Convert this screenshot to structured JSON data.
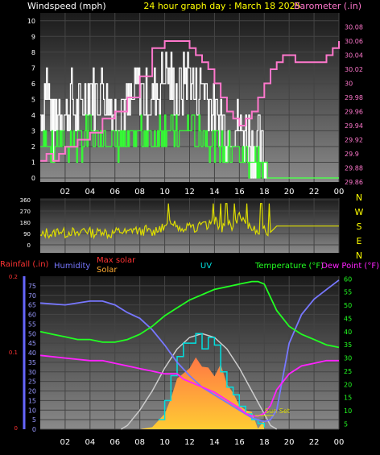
{
  "header": {
    "windspeed_label": "Windspeed (mph)",
    "title": "24 hour graph day : March 18 2025",
    "barometer_label": "Barometer (.in)"
  },
  "direction_labels": [
    "N",
    "W",
    "S",
    "E",
    "N"
  ],
  "lower_labels": {
    "rainfall": "Rainfall (.in)",
    "humidity": "Humidity",
    "max_solar": "Max solar",
    "solar": "Solar",
    "uv": "UV",
    "temperature": "Temperature (°F)",
    "dew_point": "Dew Point (°F)",
    "sunset": "Sun Set"
  },
  "colors": {
    "windspeed": "#ffffff",
    "gust": "#ffffff",
    "wind_avg": "#33ff33",
    "barometer": "#ff77cc",
    "direction": "#dddd00",
    "rainfall": "#ff3333",
    "humidity": "#7777ff",
    "max_solar": "#cccccc",
    "solar": "#ffaa33",
    "uv": "#00e0e0",
    "temperature": "#22ff22",
    "dew_point": "#ff22ff",
    "sunset": "#dddd00"
  },
  "chart_data": [
    {
      "type": "line",
      "x_ticks": [
        "02",
        "04",
        "06",
        "08",
        "10",
        "12",
        "14",
        "16",
        "18",
        "20",
        "22",
        "00"
      ],
      "y_left_ticks": [
        "0",
        "1",
        "2",
        "3",
        "4",
        "5",
        "6",
        "7",
        "8",
        "9",
        "10"
      ],
      "y_right_ticks": [
        "29.86",
        "29.88",
        "29.9",
        "29.92",
        "29.94",
        "29.96",
        "29.98",
        "30",
        "30.02",
        "30.04",
        "30.06",
        "30.08"
      ],
      "ylim_left": [
        0,
        10.5
      ],
      "ylim_right": [
        29.86,
        30.1
      ],
      "xlim_hours": [
        0,
        24
      ],
      "series": [
        {
          "name": "Windspeed (mph)",
          "axis": "left",
          "x": [
            0,
            0.5,
            1,
            1.5,
            2,
            2.5,
            3,
            3.5,
            4,
            4.5,
            5,
            5.5,
            6,
            6.5,
            7,
            7.5,
            8,
            8.5,
            9,
            9.5,
            10,
            10.5,
            11,
            11.5,
            12,
            12.5,
            13,
            13.5,
            14,
            14.5,
            15,
            15.5,
            16,
            16.5,
            17,
            17.5,
            18,
            18.5,
            19,
            20,
            22,
            24
          ],
          "values": [
            4,
            6,
            3,
            5,
            4,
            5,
            4,
            5,
            6,
            5,
            6,
            5,
            4,
            5,
            4,
            5,
            6,
            5,
            5,
            6,
            7,
            6,
            5,
            6,
            7,
            5,
            6,
            5,
            4,
            4,
            3,
            4,
            3,
            3,
            2,
            2,
            1,
            0,
            0,
            0,
            0,
            0
          ]
        },
        {
          "name": "Barometer (.in)",
          "axis": "right",
          "x": [
            0,
            0.5,
            1,
            1.5,
            2,
            3,
            4,
            5,
            6,
            7,
            8,
            9,
            10,
            11,
            12,
            12.5,
            13,
            13.5,
            14,
            14.5,
            15,
            15.5,
            16,
            16.5,
            17,
            17.5,
            18,
            18.5,
            19,
            19.5,
            20,
            20.5,
            21,
            22,
            23,
            23.5,
            24
          ],
          "values": [
            29.89,
            29.9,
            29.89,
            29.9,
            29.91,
            29.92,
            29.93,
            29.95,
            29.96,
            29.98,
            30.01,
            30.05,
            30.06,
            30.06,
            30.05,
            30.04,
            30.03,
            30.02,
            30.0,
            29.98,
            29.96,
            29.95,
            29.94,
            29.95,
            29.96,
            29.98,
            30.0,
            30.02,
            30.03,
            30.04,
            30.04,
            30.03,
            30.03,
            30.03,
            30.04,
            30.05,
            30.06
          ]
        }
      ]
    },
    {
      "type": "line",
      "x_ticks": [
        "02",
        "04",
        "06",
        "08",
        "10",
        "12",
        "14",
        "16",
        "18",
        "20",
        "22",
        "00"
      ],
      "y_ticks": [
        "0",
        "90",
        "180",
        "270",
        "360"
      ],
      "ylim": [
        0,
        360
      ],
      "xlim_hours": [
        0,
        24
      ],
      "series": [
        {
          "name": "Wind direction",
          "x": [
            0,
            0.5,
            1,
            1.5,
            2,
            2.5,
            3,
            3.5,
            4,
            4.5,
            5,
            5.5,
            6,
            6.5,
            7,
            7.5,
            8,
            8.5,
            9,
            9.5,
            10,
            10.5,
            11,
            11.5,
            12,
            12.5,
            13,
            13.5,
            14,
            14.5,
            15,
            15.5,
            16,
            16.5,
            17,
            17.5,
            18,
            18.5,
            19,
            20,
            22,
            24
          ],
          "values": [
            60,
            100,
            80,
            120,
            90,
            110,
            70,
            130,
            100,
            90,
            120,
            80,
            100,
            110,
            90,
            130,
            100,
            120,
            90,
            140,
            120,
            200,
            150,
            130,
            180,
            120,
            160,
            140,
            200,
            130,
            170,
            150,
            220,
            160,
            140,
            120,
            110,
            100,
            150,
            150,
            150,
            150
          ]
        }
      ]
    },
    {
      "type": "line",
      "x_ticks": [
        "02",
        "04",
        "06",
        "08",
        "10",
        "12",
        "14",
        "16",
        "18",
        "20",
        "22",
        "00"
      ],
      "y_humidity_ticks": [
        "0",
        "5",
        "10",
        "15",
        "20",
        "25",
        "30",
        "35",
        "40",
        "45",
        "50",
        "55",
        "60",
        "65",
        "70",
        "75"
      ],
      "y_rain_ticks": [
        "0",
        "0.1",
        "0.2"
      ],
      "y_temp_ticks": [
        "5",
        "10",
        "15",
        "20",
        "25",
        "30",
        "35",
        "40",
        "45",
        "50",
        "55",
        "60"
      ],
      "ylim_humidity": [
        0,
        80
      ],
      "ylim_temp": [
        3,
        61
      ],
      "xlim_hours": [
        0,
        24
      ],
      "series": [
        {
          "name": "Humidity",
          "axis": "humidity",
          "x": [
            0,
            2,
            4,
            5,
            6,
            7,
            8,
            9,
            10,
            11,
            12,
            13,
            14,
            15,
            16,
            17,
            18,
            18.5,
            19,
            20,
            21,
            22,
            23,
            24
          ],
          "values": [
            66,
            65,
            67,
            67,
            65,
            61,
            58,
            52,
            44,
            35,
            28,
            22,
            18,
            14,
            10,
            6,
            4,
            5,
            10,
            45,
            60,
            68,
            73,
            78
          ]
        },
        {
          "name": "Max solar",
          "axis": "humidity",
          "x": [
            6.5,
            7,
            8,
            9,
            10,
            11,
            12,
            13,
            14,
            15,
            16,
            17,
            18,
            18.5,
            19
          ],
          "values": [
            0,
            2,
            10,
            20,
            32,
            42,
            48,
            50,
            48,
            42,
            32,
            20,
            8,
            2,
            0
          ]
        },
        {
          "name": "Solar",
          "axis": "humidity",
          "x": [
            8,
            9,
            10,
            10.5,
            11,
            11.5,
            12,
            12.5,
            13,
            13.5,
            14,
            14.5,
            15,
            15.5,
            16,
            16.5,
            17,
            17.5,
            18
          ],
          "values": [
            1,
            3,
            10,
            18,
            25,
            30,
            32,
            34,
            30,
            35,
            28,
            30,
            22,
            18,
            14,
            10,
            6,
            3,
            1
          ]
        },
        {
          "name": "UV",
          "axis": "humidity",
          "x": [
            9.5,
            10,
            10.5,
            11,
            11.5,
            12,
            12.5,
            13,
            13.5,
            14,
            14.5,
            15,
            15.5,
            16,
            16.5,
            17,
            17.5,
            18
          ],
          "values": [
            5,
            15,
            28,
            38,
            45,
            45,
            50,
            42,
            48,
            44,
            30,
            22,
            18,
            12,
            8,
            5,
            3,
            1
          ]
        },
        {
          "name": "Temperature (°F)",
          "axis": "temperature",
          "x": [
            0,
            1,
            2,
            3,
            4,
            5,
            6,
            7,
            8,
            9,
            10,
            11,
            12,
            13,
            14,
            15,
            16,
            17,
            17.5,
            18,
            19,
            20,
            21,
            22,
            23,
            24
          ],
          "values": [
            40,
            39,
            38,
            37,
            37,
            36,
            36,
            37,
            39,
            42,
            46,
            49,
            52,
            54,
            56,
            57,
            58,
            59,
            59,
            58,
            48,
            42,
            39,
            37,
            35,
            34
          ]
        },
        {
          "name": "Dew Point (°F)",
          "axis": "temperature",
          "x": [
            0,
            2,
            4,
            5,
            6,
            7,
            8,
            9,
            10,
            11,
            11.5,
            12,
            12.5,
            13,
            13.5,
            14,
            15,
            16,
            16.5,
            17,
            17.5,
            18,
            18.5,
            19,
            20,
            21,
            22,
            23,
            24
          ],
          "values": [
            31,
            30,
            29,
            29,
            28,
            27,
            26,
            25,
            24,
            24,
            22,
            21,
            20,
            19,
            18,
            17,
            14,
            11,
            9,
            8,
            8,
            9,
            12,
            18,
            24,
            27,
            28,
            29,
            29
          ]
        }
      ]
    }
  ]
}
